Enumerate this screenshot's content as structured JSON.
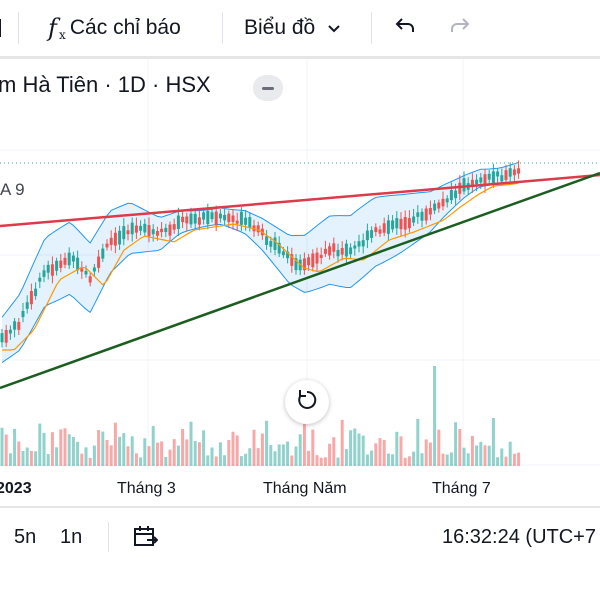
{
  "toolbar": {
    "indicators_icon": "function-icon",
    "indicators_label": "Các chỉ báo",
    "chart_type_label": "Biểu đồ",
    "chart_type_icon": "chevron-down-icon",
    "undo_icon": "undo-icon",
    "redo_icon": "redo-icon"
  },
  "symbol": {
    "title": "m Hà Tiên · 1D · HSX"
  },
  "indicator_legend": {
    "label": "A 9"
  },
  "time_axis": {
    "labels": [
      "2023",
      "Tháng 3",
      "Tháng Năm",
      "Tháng 7"
    ]
  },
  "bottom_bar": {
    "range_5d": "5n",
    "range_1d": "1n",
    "date_range_icon": "calendar-range-icon",
    "clock": "16:32:24 (UTC+7"
  },
  "colors": {
    "up": "#26a69a",
    "down": "#ef5350",
    "bollinger": "#2196f3",
    "ma": "#ff9800",
    "resistance_line": "#dd3b4b",
    "support_line": "#1b5e20",
    "last_price_line": "#26a69a"
  }
}
